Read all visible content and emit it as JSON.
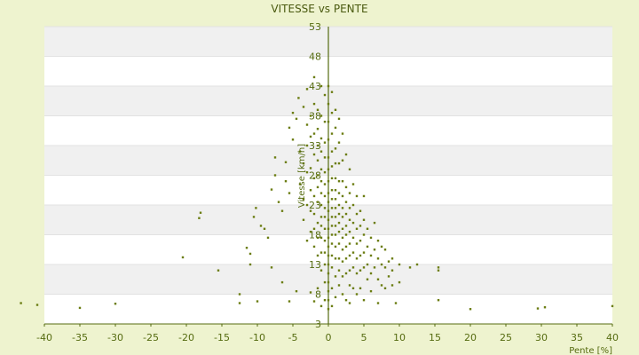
{
  "chart_data": {
    "type": "scatter",
    "title": "VITESSE vs PENTE",
    "xlabel": "Pente [%]",
    "ylabel": "Vitesse [km/h]",
    "xlim": [
      -40,
      40
    ],
    "ylim": [
      3,
      53
    ],
    "x_ticks": [
      -40,
      -35,
      -30,
      -25,
      -20,
      -15,
      -10,
      -5,
      0,
      5,
      10,
      15,
      20,
      25,
      30,
      35,
      40
    ],
    "y_ticks": [
      3,
      8,
      13,
      18,
      23,
      28,
      33,
      38,
      43,
      48,
      53
    ],
    "grid": true,
    "marker_color": "#6b7d12",
    "band_color": "#f0f0f0",
    "axis_color": "#556b10",
    "series": [
      {
        "points": [
          [
            -43.3,
            6.5
          ],
          [
            -41,
            6.2
          ],
          [
            -35,
            5.7
          ],
          [
            -30,
            6.4
          ],
          [
            -20.5,
            14.2
          ],
          [
            -18,
            21.7
          ],
          [
            -18.2,
            20.8
          ],
          [
            -15.5,
            12
          ],
          [
            -12.5,
            6.5
          ],
          [
            -12.5,
            8
          ],
          [
            -10,
            6.8
          ],
          [
            -11.5,
            15.8
          ],
          [
            -11,
            14.8
          ],
          [
            -11,
            13
          ],
          [
            -10.5,
            21
          ],
          [
            -10.2,
            22.5
          ],
          [
            -9.5,
            19.5
          ],
          [
            -9,
            19
          ],
          [
            -8.5,
            17.5
          ],
          [
            -8,
            25.6
          ],
          [
            -8,
            12.5
          ],
          [
            -7.5,
            28
          ],
          [
            -7,
            23.5
          ],
          [
            -7.5,
            31
          ],
          [
            -6.5,
            22
          ],
          [
            -6.5,
            10
          ],
          [
            -6,
            27
          ],
          [
            -6,
            30.2
          ],
          [
            -5.5,
            36
          ],
          [
            -5.5,
            25
          ],
          [
            -5.5,
            6.8
          ],
          [
            -5,
            34
          ],
          [
            -5,
            38.5
          ],
          [
            -4.5,
            37.5
          ],
          [
            -4.5,
            8.5
          ],
          [
            -4.2,
            41
          ],
          [
            -4,
            32
          ],
          [
            -4,
            26.5
          ],
          [
            -3.5,
            39.5
          ],
          [
            -3.5,
            30
          ],
          [
            -3.5,
            24
          ],
          [
            -3.5,
            20.5
          ],
          [
            -3,
            42.5
          ],
          [
            -3,
            36.5
          ],
          [
            -3,
            33
          ],
          [
            -3,
            28.5
          ],
          [
            -3,
            23
          ],
          [
            -3,
            17
          ],
          [
            -2.5,
            38
          ],
          [
            -2.5,
            34.5
          ],
          [
            -2.5,
            29.2
          ],
          [
            -2.5,
            25.5
          ],
          [
            -2.5,
            22
          ],
          [
            -2.5,
            18.5
          ],
          [
            -2.5,
            8.3
          ],
          [
            -2,
            44.5
          ],
          [
            -2,
            40
          ],
          [
            -2,
            35
          ],
          [
            -2,
            31.5
          ],
          [
            -2,
            27.5
          ],
          [
            -2,
            24.5
          ],
          [
            -2,
            21.5
          ],
          [
            -2,
            19
          ],
          [
            -2,
            16
          ],
          [
            -2,
            6.8
          ],
          [
            -1.5,
            39
          ],
          [
            -1.5,
            35.8
          ],
          [
            -1.5,
            33
          ],
          [
            -1.5,
            30.5
          ],
          [
            -1.5,
            28
          ],
          [
            -1.5,
            26
          ],
          [
            -1.5,
            23.5
          ],
          [
            -1.5,
            20
          ],
          [
            -1.5,
            17.5
          ],
          [
            -1.5,
            14.5
          ],
          [
            -1.5,
            9
          ],
          [
            -1,
            43
          ],
          [
            -1,
            38
          ],
          [
            -1,
            34.2
          ],
          [
            -1,
            32
          ],
          [
            -1,
            29
          ],
          [
            -1,
            27
          ],
          [
            -1,
            25
          ],
          [
            -1,
            23
          ],
          [
            -1,
            21
          ],
          [
            -1,
            19.5
          ],
          [
            -1,
            17.5
          ],
          [
            -1,
            15
          ],
          [
            -1,
            12
          ],
          [
            -1,
            6
          ],
          [
            -0.5,
            41.5
          ],
          [
            -0.5,
            37
          ],
          [
            -0.5,
            33.5
          ],
          [
            -0.5,
            31
          ],
          [
            -0.5,
            28.5
          ],
          [
            -0.5,
            26.5
          ],
          [
            -0.5,
            24.5
          ],
          [
            -0.5,
            22.5
          ],
          [
            -0.5,
            21
          ],
          [
            -0.5,
            19
          ],
          [
            -0.5,
            17
          ],
          [
            -0.5,
            15
          ],
          [
            -0.5,
            13
          ],
          [
            -0.5,
            10
          ],
          [
            -0.5,
            7
          ],
          [
            0,
            43
          ],
          [
            0,
            40
          ],
          [
            0,
            37
          ],
          [
            0,
            34
          ],
          [
            0,
            31
          ],
          [
            0,
            29
          ],
          [
            0,
            27
          ],
          [
            0,
            25
          ],
          [
            0,
            23.5
          ],
          [
            0,
            22
          ],
          [
            0,
            20.5
          ],
          [
            0,
            19
          ],
          [
            0,
            17.5
          ],
          [
            0,
            16
          ],
          [
            0,
            14.5
          ],
          [
            0,
            13
          ],
          [
            0,
            11.5
          ],
          [
            0,
            10
          ],
          [
            0,
            8.5
          ],
          [
            0,
            7
          ],
          [
            0,
            5.5
          ],
          [
            0.5,
            42
          ],
          [
            0.5,
            38.5
          ],
          [
            0.5,
            35
          ],
          [
            0.5,
            32
          ],
          [
            0.5,
            29.5
          ],
          [
            0.5,
            27.5
          ],
          [
            0.5,
            25.5
          ],
          [
            0.5,
            24
          ],
          [
            0.5,
            22.5
          ],
          [
            0.5,
            21
          ],
          [
            0.5,
            19.5
          ],
          [
            0.5,
            18
          ],
          [
            0.5,
            16.5
          ],
          [
            0.5,
            14.5
          ],
          [
            0.5,
            12.5
          ],
          [
            0.5,
            9
          ],
          [
            0.5,
            6
          ],
          [
            1,
            39
          ],
          [
            1,
            36
          ],
          [
            1,
            32.5
          ],
          [
            1,
            30
          ],
          [
            1,
            27.5
          ],
          [
            1,
            25.5
          ],
          [
            1,
            24
          ],
          [
            1,
            22.5
          ],
          [
            1,
            21
          ],
          [
            1,
            19.5
          ],
          [
            1,
            18
          ],
          [
            1,
            16
          ],
          [
            1,
            14
          ],
          [
            1,
            11
          ],
          [
            1,
            7.5
          ],
          [
            1.5,
            37.5
          ],
          [
            1.5,
            33.5
          ],
          [
            1.5,
            30
          ],
          [
            1.5,
            27
          ],
          [
            1.5,
            25
          ],
          [
            1.5,
            23
          ],
          [
            1.5,
            21.5
          ],
          [
            1.5,
            20
          ],
          [
            1.5,
            18.5
          ],
          [
            1.5,
            16.5
          ],
          [
            1.5,
            14
          ],
          [
            1.5,
            12
          ],
          [
            1.5,
            9.5
          ],
          [
            2,
            35
          ],
          [
            2,
            30.5
          ],
          [
            2,
            27
          ],
          [
            2,
            24.5
          ],
          [
            2,
            22.5
          ],
          [
            2,
            21
          ],
          [
            2,
            19
          ],
          [
            2,
            17.5
          ],
          [
            2,
            15.5
          ],
          [
            2,
            13.5
          ],
          [
            2,
            11
          ],
          [
            2,
            8
          ],
          [
            2.5,
            31.5
          ],
          [
            2.5,
            26
          ],
          [
            2.5,
            23.5
          ],
          [
            2.5,
            21.5
          ],
          [
            2.5,
            19.5
          ],
          [
            2.5,
            18
          ],
          [
            2.5,
            16
          ],
          [
            2.5,
            14
          ],
          [
            2.5,
            11.5
          ],
          [
            2.5,
            7
          ],
          [
            3,
            29
          ],
          [
            3,
            25
          ],
          [
            3,
            22.5
          ],
          [
            3,
            20.5
          ],
          [
            3,
            18.5
          ],
          [
            3,
            16.5
          ],
          [
            3,
            14.5
          ],
          [
            3,
            12
          ],
          [
            3,
            9.5
          ],
          [
            3,
            6.5
          ],
          [
            3.5,
            26.5
          ],
          [
            3.5,
            23
          ],
          [
            3.5,
            20
          ],
          [
            3.5,
            17.5
          ],
          [
            3.5,
            15
          ],
          [
            3.5,
            12.5
          ],
          [
            3.5,
            9
          ],
          [
            4,
            24.5
          ],
          [
            4,
            21.5
          ],
          [
            4,
            19
          ],
          [
            4,
            16.5
          ],
          [
            4,
            14
          ],
          [
            4,
            11.5
          ],
          [
            4,
            8
          ],
          [
            4.5,
            22
          ],
          [
            4.5,
            19.5
          ],
          [
            4.5,
            17
          ],
          [
            4.5,
            14.5
          ],
          [
            4.5,
            12
          ],
          [
            4.5,
            9
          ],
          [
            5,
            24.5
          ],
          [
            5,
            20.5
          ],
          [
            5,
            18
          ],
          [
            5,
            15
          ],
          [
            5,
            12.5
          ],
          [
            5,
            7
          ],
          [
            5.5,
            19
          ],
          [
            5.5,
            16
          ],
          [
            5.5,
            13
          ],
          [
            5.5,
            10.5
          ],
          [
            6,
            17.5
          ],
          [
            6,
            14.5
          ],
          [
            6,
            11.5
          ],
          [
            6,
            8.5
          ],
          [
            6.5,
            20
          ],
          [
            6.5,
            15.5
          ],
          [
            6.5,
            12.5
          ],
          [
            7,
            17
          ],
          [
            7,
            14
          ],
          [
            7,
            10.5
          ],
          [
            7,
            6.5
          ],
          [
            7.5,
            16
          ],
          [
            7.5,
            13
          ],
          [
            7.5,
            9.5
          ],
          [
            8,
            15.5
          ],
          [
            8,
            12.5
          ],
          [
            8,
            9
          ],
          [
            8.5,
            13.5
          ],
          [
            8.5,
            11
          ],
          [
            9,
            14
          ],
          [
            9,
            12
          ],
          [
            9,
            9.5
          ],
          [
            9.5,
            6.5
          ],
          [
            10,
            13
          ],
          [
            10,
            10
          ],
          [
            11.5,
            12.5
          ],
          [
            12.5,
            13
          ],
          [
            15.5,
            12.5
          ],
          [
            15.5,
            12
          ],
          [
            15.5,
            7
          ],
          [
            20,
            5.5
          ],
          [
            29.5,
            5.6
          ],
          [
            30.5,
            5.8
          ],
          [
            40,
            6
          ]
        ]
      }
    ]
  }
}
